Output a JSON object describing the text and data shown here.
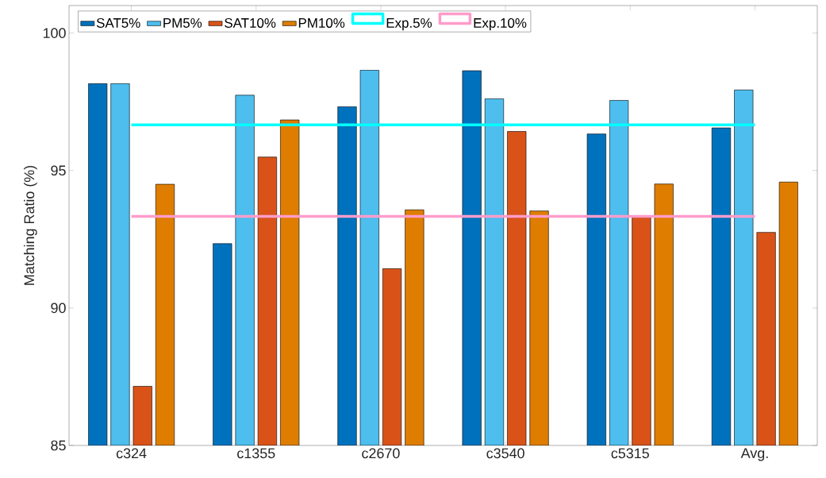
{
  "chart_data": {
    "type": "bar",
    "ylabel": "Matching Ratio (%)",
    "categories": [
      "c324",
      "c1355",
      "c2670",
      "c3540",
      "c5315",
      "Avg."
    ],
    "series": [
      {
        "name": "SAT5%",
        "color": "#0072bd",
        "values": [
          98.16,
          92.34,
          97.32,
          98.63,
          96.33,
          96.55
        ]
      },
      {
        "name": "PM5%",
        "color": "#4dbeee",
        "values": [
          98.16,
          97.74,
          98.65,
          97.61,
          97.55,
          97.93
        ]
      },
      {
        "name": "SAT10%",
        "color": "#d95319",
        "values": [
          87.15,
          95.49,
          91.43,
          96.42,
          93.3,
          92.75
        ]
      },
      {
        "name": "PM10%",
        "color": "#de7d00",
        "values": [
          94.5,
          96.84,
          93.57,
          93.53,
          94.51,
          94.58
        ]
      },
      {
        "name": "Exp.5%",
        "type": "line",
        "color": "#00ffff",
        "values": [
          96.66,
          96.66,
          96.66,
          96.66,
          96.66,
          96.66
        ]
      },
      {
        "name": "Exp.10%",
        "type": "line",
        "color": "#ff9ccb",
        "values": [
          93.33,
          93.33,
          93.33,
          93.33,
          93.33,
          93.33
        ]
      }
    ],
    "ylim": [
      85,
      101
    ],
    "yticks": [
      85,
      90,
      95,
      100
    ],
    "legend": "top left",
    "grid": false
  }
}
